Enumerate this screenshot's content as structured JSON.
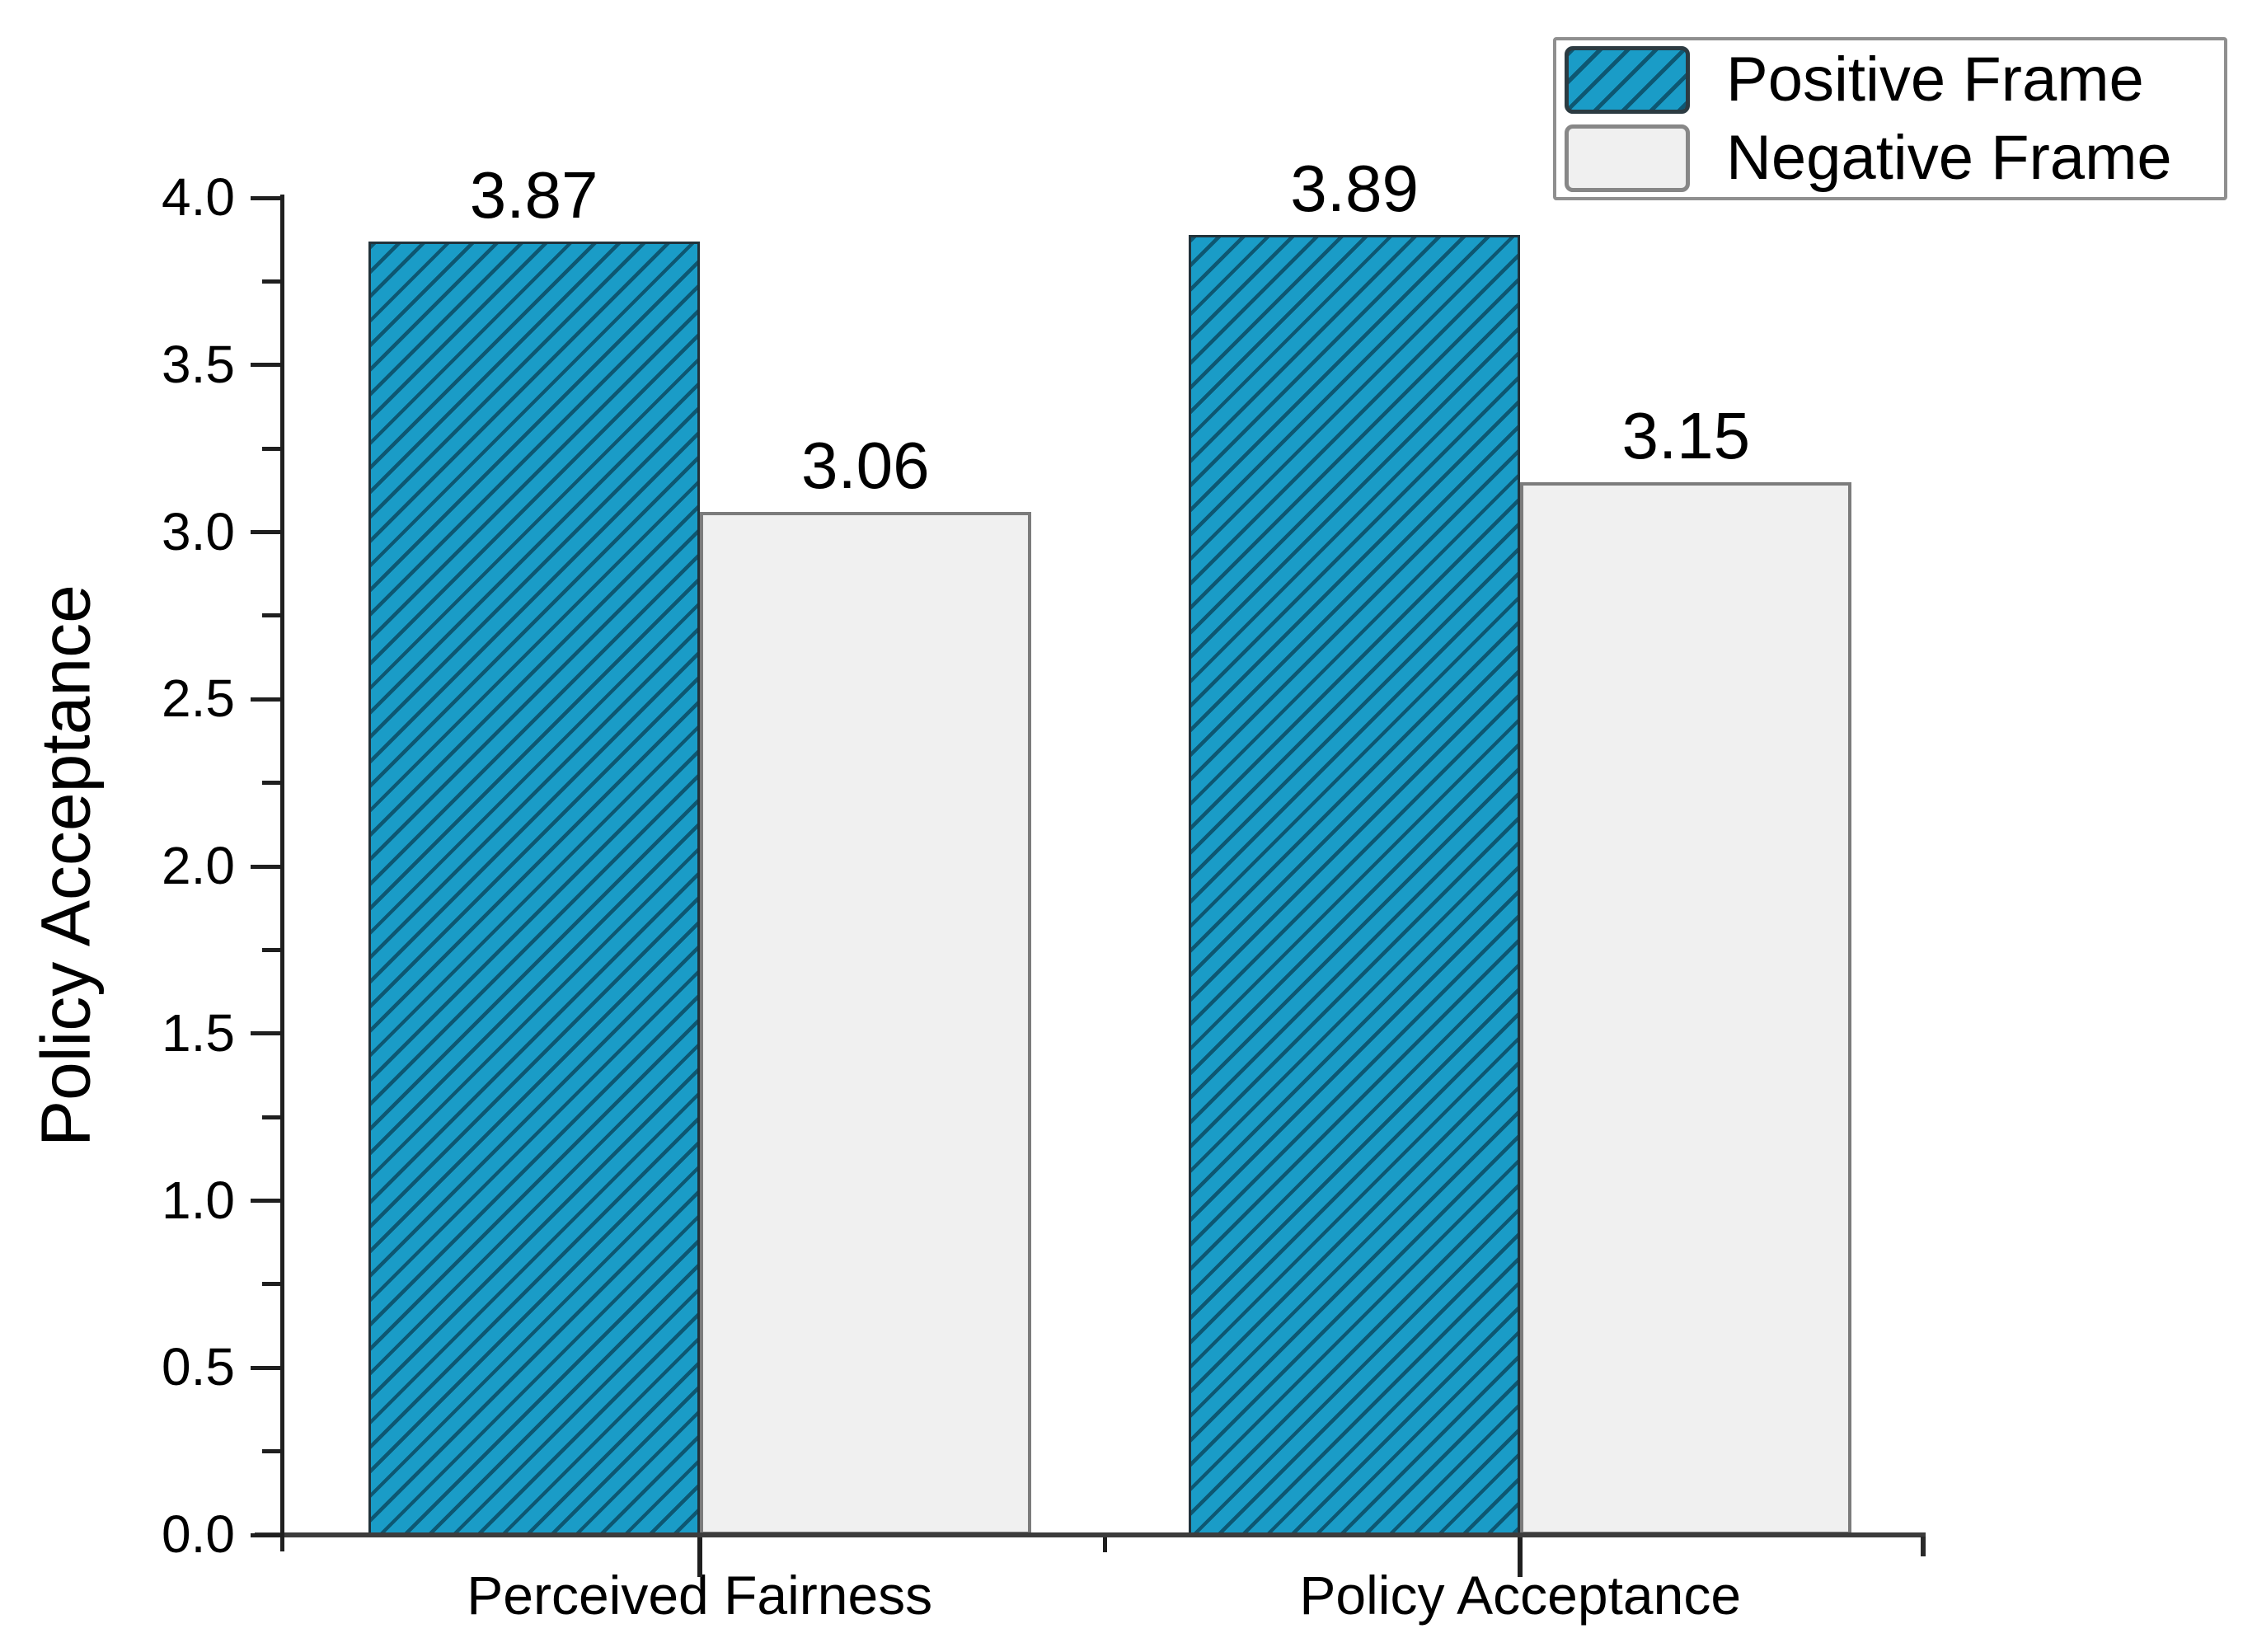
{
  "chart_data": {
    "type": "bar",
    "title": "",
    "categories": [
      "Perceived Fairness",
      "Policy Acceptance"
    ],
    "series": [
      {
        "name": "Positive Frame",
        "values": [
          3.87,
          3.89
        ],
        "labels": [
          "3.87",
          "3.89"
        ],
        "fill": "#1a9cc7",
        "border": "#22323a",
        "hatch": "diagonal-forward"
      },
      {
        "name": "Negative Frame",
        "values": [
          3.06,
          3.15
        ],
        "labels": [
          "3.06",
          "3.15"
        ],
        "fill": "#f0f0f0",
        "border": "#7c7c7c",
        "hatch": "none"
      }
    ],
    "xlabel": "",
    "ylabel": "Policy Acceptance",
    "ylim": [
      0,
      4.0
    ],
    "ytick_step": 0.5,
    "ytick_minor_step": 0.25,
    "ytick_labels": [
      "0.0",
      "0.5",
      "1.0",
      "1.5",
      "2.0",
      "2.5",
      "3.0",
      "3.5",
      "4.0"
    ],
    "grid": false,
    "legend_position": "top-right",
    "axis_color": "#1f1f1f",
    "baseline_color": "#3c3c3c",
    "text_color": "#000000"
  }
}
